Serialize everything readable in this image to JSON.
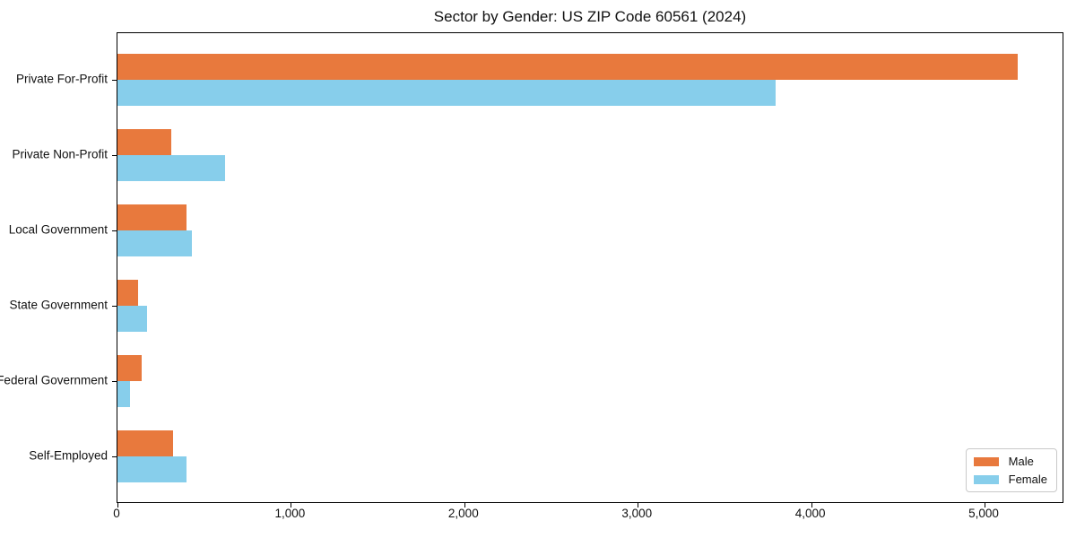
{
  "chart_data": {
    "type": "bar",
    "orientation": "horizontal",
    "title": "Sector by Gender: US ZIP Code 60561 (2024)",
    "categories": [
      "Private For-Profit",
      "Private Non-Profit",
      "Local Government",
      "State Government",
      "Federal Government",
      "Self-Employed"
    ],
    "series": [
      {
        "name": "Male",
        "color": "#e8793d",
        "values": [
          5200,
          310,
          400,
          120,
          140,
          320
        ]
      },
      {
        "name": "Female",
        "color": "#87ceeb",
        "values": [
          3800,
          620,
          430,
          170,
          75,
          400
        ]
      }
    ],
    "xlabel": "",
    "ylabel": "",
    "xlim": [
      0,
      5460
    ],
    "x_ticks": {
      "values": [
        0,
        1000,
        2000,
        3000,
        4000,
        5000
      ],
      "labels": [
        "0",
        "1,000",
        "2,000",
        "3,000",
        "4,000",
        "5,000"
      ]
    },
    "grid": false,
    "legend": {
      "position": "lower right",
      "entries": [
        "Male",
        "Female"
      ]
    },
    "colors": {
      "background": "#ffffff",
      "spine": "#000000",
      "text": "#111111",
      "legend_border": "#c9c9c9"
    }
  }
}
